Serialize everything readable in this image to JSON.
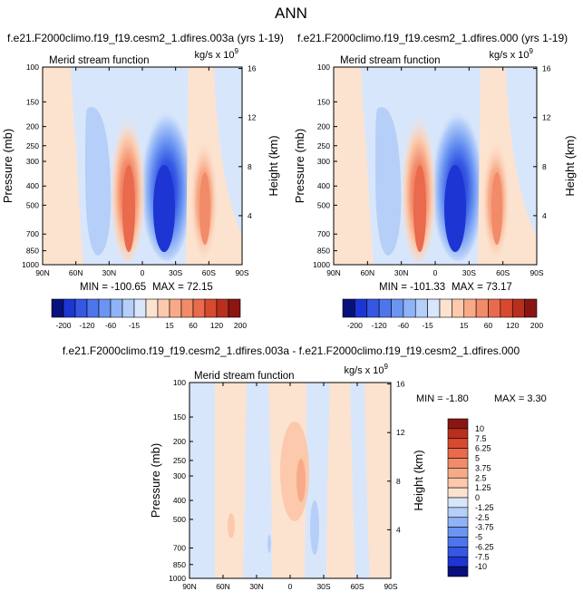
{
  "figure": {
    "title": "ANN",
    "top_left_title": "f.e21.F2000climo.f19_f19.cesm2_1.dfires.003a (yrs 1-19)",
    "top_right_title": "f.e21.F2000climo.f19_f19.cesm2_1.dfires.000 (yrs 1-19)",
    "bottom_title": "f.e21.F2000climo.f19_f19.cesm2_1.dfires.003a - f.e21.F2000climo.f19_f19.cesm2_1.dfires.000"
  },
  "chart_data": [
    {
      "type": "heatmap",
      "subtitle": "Merid stream function",
      "units": "kg/s x 10^9",
      "ylabel": "Pressure (mb)",
      "y2label": "Height (km)",
      "x_ticks": [
        "90N",
        "60N",
        "30N",
        "0",
        "30S",
        "60S",
        "90S"
      ],
      "x_tick_values": [
        90,
        60,
        30,
        0,
        -30,
        -60,
        -90
      ],
      "y_ticks": [
        "100",
        "150",
        "200",
        "250",
        "300",
        "400",
        "500",
        "700",
        "850",
        "1000"
      ],
      "y_tick_values": [
        100,
        150,
        200,
        250,
        300,
        400,
        500,
        700,
        850,
        1000
      ],
      "y2_ticks": [
        "16",
        "12",
        "8",
        "4"
      ],
      "ylim": [
        1000,
        100
      ],
      "min_label": "MIN = -100.65",
      "max_label": "MAX = 72.15",
      "min": -100.65,
      "max": 72.15,
      "features": [
        {
          "lat": 15,
          "p": 520,
          "value": -100.65
        },
        {
          "lat": 21,
          "p": 520,
          "value": 72.15
        },
        {
          "lat": -32,
          "p": 500,
          "value": 20
        },
        {
          "lat": 45,
          "p": 500,
          "value": -20
        }
      ]
    },
    {
      "type": "heatmap",
      "subtitle": "Merid stream function",
      "units": "kg/s x 10^9",
      "ylabel": "Pressure (mb)",
      "y2label": "Height (km)",
      "x_ticks": [
        "90N",
        "60N",
        "30N",
        "0",
        "30S",
        "60S",
        "90S"
      ],
      "x_tick_values": [
        90,
        60,
        30,
        0,
        -30,
        -60,
        -90
      ],
      "y_ticks": [
        "100",
        "150",
        "200",
        "250",
        "300",
        "400",
        "500",
        "700",
        "850",
        "1000"
      ],
      "y_tick_values": [
        100,
        150,
        200,
        250,
        300,
        400,
        500,
        700,
        850,
        1000
      ],
      "y2_ticks": [
        "16",
        "12",
        "8",
        "4"
      ],
      "ylim": [
        1000,
        100
      ],
      "min_label": "MIN = -101.33",
      "max_label": "MAX = 73.17",
      "min": -101.33,
      "max": 73.17,
      "features": [
        {
          "lat": 14,
          "p": 520,
          "value": -101.33
        },
        {
          "lat": 21,
          "p": 520,
          "value": 73.17
        },
        {
          "lat": -32,
          "p": 500,
          "value": 20
        },
        {
          "lat": 45,
          "p": 500,
          "value": -20
        }
      ]
    },
    {
      "type": "heatmap",
      "subtitle": "Merid stream function",
      "units": "kg/s x 10^9",
      "ylabel": "Pressure (mb)",
      "y2label": "Height (km)",
      "x_ticks": [
        "90N",
        "60N",
        "30N",
        "0",
        "30S",
        "60S",
        "90S"
      ],
      "x_tick_values": [
        90,
        60,
        30,
        0,
        -30,
        -60,
        -90
      ],
      "y_ticks": [
        "100",
        "150",
        "200",
        "250",
        "300",
        "400",
        "500",
        "700",
        "850",
        "1000"
      ],
      "y_tick_values": [
        100,
        150,
        200,
        250,
        300,
        400,
        500,
        700,
        850,
        1000
      ],
      "y2_ticks": [
        "16",
        "12",
        "8",
        "4"
      ],
      "ylim": [
        1000,
        100
      ],
      "min_label": "MIN = -1.80",
      "max_label": "MAX =  3.30",
      "min": -1.8,
      "max": 3.3
    }
  ],
  "colorbars": {
    "main": {
      "labels": [
        "-200",
        "-120",
        "-60",
        "-15",
        "15",
        "60",
        "120",
        "200"
      ],
      "colors": [
        "#08107a",
        "#1d35d2",
        "#3557e3",
        "#4d76ec",
        "#6b95f2",
        "#8fb3f7",
        "#b6cff9",
        "#d8e6fb",
        "#fce3d0",
        "#fcc9ac",
        "#f8aa88",
        "#f28b69",
        "#e96a4c",
        "#d84a30",
        "#b8301d",
        "#8a1512"
      ]
    },
    "diff": {
      "labels": [
        "10",
        "7.5",
        "6.25",
        "5",
        "3.75",
        "2.5",
        "1.25",
        "0",
        "-1.25",
        "-2.5",
        "-3.75",
        "-5",
        "-6.25",
        "-7.5",
        "-10"
      ],
      "colors": [
        "#8a1512",
        "#b8301d",
        "#d84a30",
        "#e96a4c",
        "#f28b69",
        "#f8aa88",
        "#fcc9ac",
        "#fce3d0",
        "#d8e6fb",
        "#b6cff9",
        "#8fb3f7",
        "#6b95f2",
        "#4d76ec",
        "#3557e3",
        "#1d35d2",
        "#08107a"
      ]
    }
  }
}
